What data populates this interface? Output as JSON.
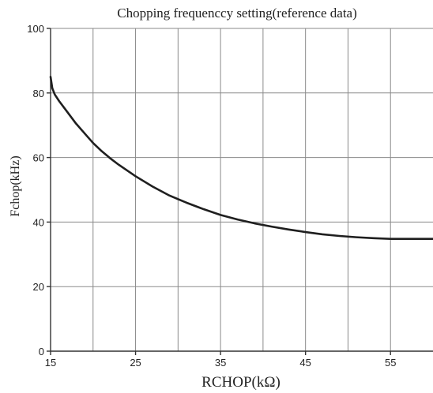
{
  "chart_data": {
    "type": "line",
    "title": "Chopping frequenccy setting(reference data)",
    "xlabel": "RCHOP(kΩ)",
    "ylabel": "Fchop(kHz)",
    "xlim": [
      15,
      60
    ],
    "ylim": [
      0,
      100
    ],
    "x_ticks": [
      15,
      25,
      35,
      45,
      55
    ],
    "x_tick_labels": [
      "15",
      "25",
      "35",
      "45",
      "55"
    ],
    "x_gridlines": [
      20,
      25,
      30,
      35,
      40,
      45,
      50,
      55
    ],
    "y_ticks": [
      0,
      20,
      40,
      60,
      80,
      100
    ],
    "y_tick_labels": [
      "0",
      "20",
      "40",
      "60",
      "80",
      "100"
    ],
    "grid": true,
    "legend": "none",
    "series": [
      {
        "color": "#1f1f1f",
        "points": [
          [
            15,
            85
          ],
          [
            15.2,
            81.5
          ],
          [
            15.5,
            79.5
          ],
          [
            16,
            77.5
          ],
          [
            17,
            74
          ],
          [
            18,
            70.5
          ],
          [
            19,
            67.5
          ],
          [
            20,
            64.5
          ],
          [
            21,
            62
          ],
          [
            22,
            59.8
          ],
          [
            23,
            57.8
          ],
          [
            24,
            56
          ],
          [
            25,
            54.2
          ],
          [
            27,
            51
          ],
          [
            29,
            48.2
          ],
          [
            31,
            46
          ],
          [
            33,
            44
          ],
          [
            35,
            42.2
          ],
          [
            37,
            40.8
          ],
          [
            39,
            39.6
          ],
          [
            41,
            38.6
          ],
          [
            43,
            37.7
          ],
          [
            45,
            36.9
          ],
          [
            47,
            36.2
          ],
          [
            49,
            35.7
          ],
          [
            51,
            35.3
          ],
          [
            53,
            35
          ],
          [
            55,
            34.8
          ],
          [
            57,
            34.8
          ],
          [
            60,
            34.8
          ]
        ]
      }
    ]
  }
}
